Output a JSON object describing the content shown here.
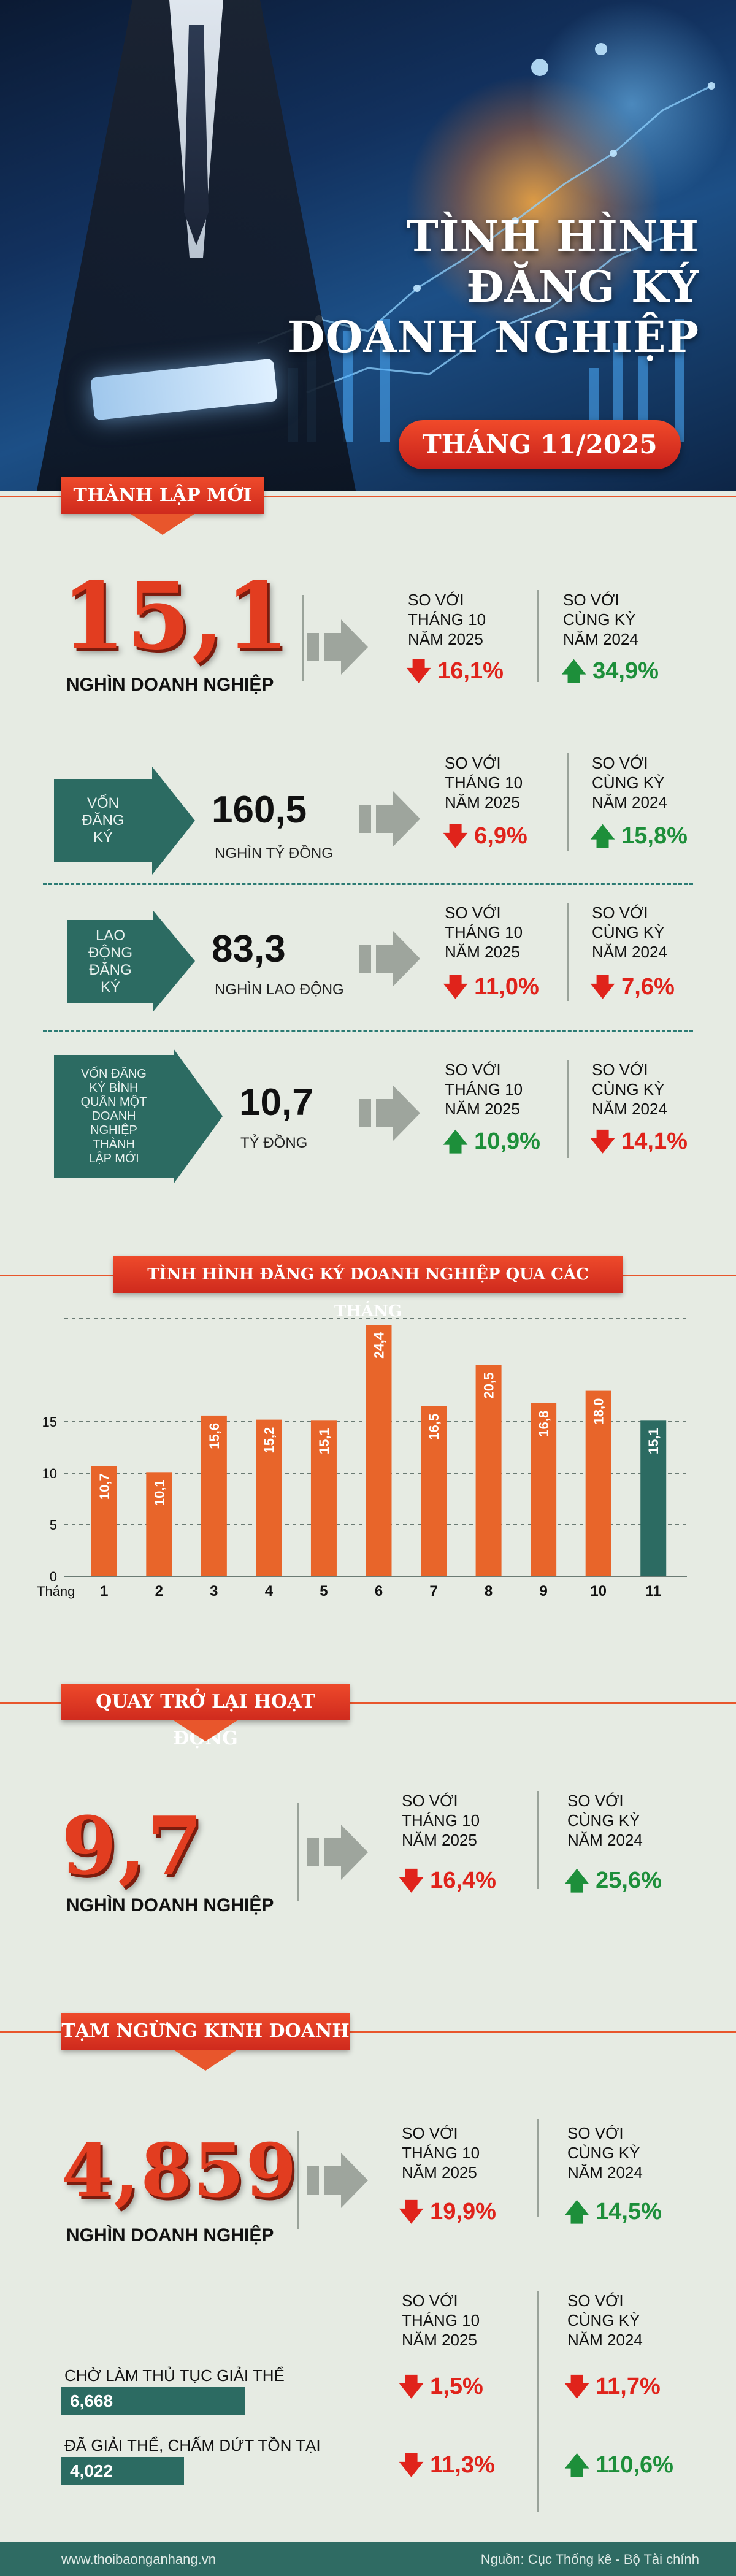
{
  "hero": {
    "title_line1": "TÌNH HÌNH",
    "title_line2": "ĐĂNG KÝ",
    "title_line3": "DOANH NGHIỆP",
    "month": "THÁNG 11/2025"
  },
  "compare": {
    "vs_month_l1": "SO VỚI",
    "vs_month_l2": "THÁNG 10",
    "vs_month_l3": "NĂM 2025",
    "vs_year_l1": "SO VỚI",
    "vs_year_l2": "CÙNG KỲ",
    "vs_year_l3": "NĂM 2024"
  },
  "new_section": {
    "ribbon": "THÀNH LẬP MỚI",
    "big_value": "15,1",
    "big_unit": "NGHÌN DOANH NGHIỆP",
    "month_pct": "16,1%",
    "year_pct": "34,9%",
    "rows": [
      {
        "label_l1": "VỐN",
        "label_l2": "ĐĂNG",
        "label_l3": "KÝ",
        "value": "160,5",
        "unit": "NGHÌN TỶ ĐỒNG",
        "month_pct": "6,9%",
        "year_pct": "15,8%"
      },
      {
        "label_l1": "LAO",
        "label_l2": "ĐỘNG",
        "label_l3": "ĐĂNG",
        "label_l4": "KÝ",
        "value": "83,3",
        "unit": "NGHÌN LAO ĐỘNG",
        "month_pct": "11,0%",
        "year_pct": "7,6%"
      },
      {
        "label_l1": "VỐN ĐĂNG",
        "label_l2": "KÝ BÌNH",
        "label_l3": "QUÂN MỘT",
        "label_l4": "DOANH",
        "label_l5": "NGHIỆP",
        "label_l6": "THÀNH",
        "label_l7": "LẬP MỚI",
        "value": "10,7",
        "unit": "TỶ ĐỒNG",
        "month_pct": "10,9%",
        "year_pct": "14,1%"
      }
    ]
  },
  "chart_section": {
    "ribbon": "TÌNH HÌNH ĐĂNG KÝ DOANH NGHIỆP QUA CÁC THÁNG"
  },
  "chart_data": {
    "type": "bar",
    "xlabel": "Tháng",
    "categories": [
      "1",
      "2",
      "3",
      "4",
      "5",
      "6",
      "7",
      "8",
      "9",
      "10",
      "11"
    ],
    "values": [
      10.7,
      10.1,
      15.6,
      15.2,
      15.1,
      24.4,
      16.5,
      20.5,
      16.8,
      18.0,
      15.1
    ],
    "value_labels": [
      "10,7",
      "10,1",
      "15,6",
      "15,2",
      "15,1",
      "24,4",
      "16,5",
      "20,5",
      "16,8",
      "18,0",
      "15,1"
    ],
    "yticks": [
      "0",
      "5",
      "10",
      "15"
    ],
    "ylim": [
      0,
      25
    ],
    "grid": true,
    "colors": {
      "default": "#e8652a",
      "highlight": "#2c6b62"
    },
    "highlight_index": 10
  },
  "return_section": {
    "ribbon": "QUAY TRỞ LẠI HOẠT ĐỘNG",
    "big_value": "9,7",
    "big_unit": "NGHÌN DOANH NGHIỆP",
    "month_pct": "16,4%",
    "year_pct": "25,6%"
  },
  "suspend_section": {
    "ribbon": "TẠM NGỪNG KINH DOANH",
    "big_value": "4,859",
    "big_unit": "NGHÌN DOANH NGHIỆP",
    "month_pct": "19,9%",
    "year_pct": "14,5%",
    "pending_label": "CHỜ LÀM THỦ TỤC GIẢI THỂ",
    "pending_value": "6,668",
    "pending_month_pct": "1,5%",
    "pending_year_pct": "11,7%",
    "dissolved_label": "ĐÃ GIẢI THỂ, CHẤM DỨT TỒN TẠI",
    "dissolved_value": "4,022",
    "dissolved_month_pct": "11,3%",
    "dissolved_year_pct": "110,6%"
  },
  "footer": {
    "website": "www.thoibaonganhang.vn",
    "source": "Nguồn: Cục Thống kê - Bộ Tài chính"
  },
  "colors": {
    "background": "#e6ebe3",
    "accent_red": "#e23d20",
    "teal": "#2c6b62",
    "bar_orange": "#e8652a",
    "down_red": "#e0231b",
    "up_green": "#1d8f3a"
  }
}
